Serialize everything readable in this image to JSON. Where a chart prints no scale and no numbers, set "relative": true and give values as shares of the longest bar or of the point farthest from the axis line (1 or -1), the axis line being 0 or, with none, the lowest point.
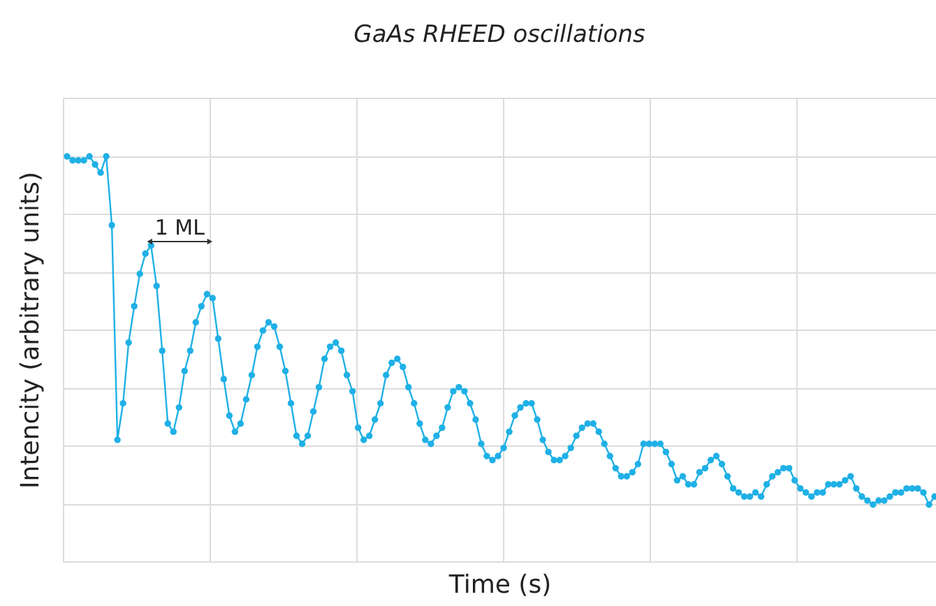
{
  "chart_data": {
    "type": "line",
    "title": "GaAs RHEED oscillations",
    "xlabel": "Time (s)",
    "ylabel": "Intencity (arbitrary units)",
    "relative": true,
    "grid": true,
    "tick_labels": false,
    "marker": "circle",
    "line_style": "solid",
    "annotations": [
      "1 ML"
    ],
    "categories": [
      null,
      null,
      null,
      null,
      null,
      null,
      null,
      null,
      null,
      null,
      null,
      null,
      null,
      null,
      null,
      null,
      null,
      null,
      null,
      null,
      null,
      null,
      null,
      null,
      null,
      null,
      null,
      null,
      null,
      null,
      null,
      null,
      null,
      null,
      null,
      null,
      null,
      null,
      null,
      null,
      null,
      null,
      null,
      null,
      null,
      null,
      null,
      null,
      null,
      null,
      null,
      null,
      null,
      null,
      null,
      null,
      null,
      null,
      null,
      null,
      null,
      null,
      null,
      null,
      null,
      null,
      null,
      null,
      null,
      null,
      null,
      null,
      null,
      null,
      null,
      null,
      null,
      null,
      null,
      null,
      null,
      null,
      null,
      null,
      null,
      null,
      null,
      null,
      null,
      null,
      null,
      null,
      null,
      null,
      null,
      null,
      null,
      null,
      null,
      null,
      null,
      null,
      null,
      null,
      null,
      null,
      null,
      null,
      null,
      null,
      null,
      null,
      null,
      null,
      null,
      null,
      null,
      null,
      null,
      null,
      null,
      null,
      null,
      null,
      null,
      null,
      null,
      null,
      null,
      null,
      null,
      null,
      null,
      null,
      null,
      null,
      null,
      null,
      null,
      null,
      null,
      null,
      null,
      null,
      null,
      null,
      null,
      null,
      null,
      null,
      null,
      null,
      null,
      null,
      null,
      null
    ],
    "series": [
      {
        "color": "#1fb0e6",
        "values": [
          1.0,
          0.99,
          0.99,
          0.99,
          1.0,
          0.98,
          0.96,
          1.0,
          0.83,
          0.3,
          0.39,
          0.54,
          0.63,
          0.71,
          0.76,
          0.78,
          0.68,
          0.52,
          0.34,
          0.32,
          0.38,
          0.47,
          0.52,
          0.59,
          0.63,
          0.66,
          0.65,
          0.55,
          0.45,
          0.36,
          0.32,
          0.34,
          0.4,
          0.46,
          0.53,
          0.57,
          0.59,
          0.58,
          0.53,
          0.47,
          0.39,
          0.31,
          0.29,
          0.31,
          0.37,
          0.43,
          0.5,
          0.53,
          0.54,
          0.52,
          0.46,
          0.42,
          0.33,
          0.3,
          0.31,
          0.35,
          0.39,
          0.46,
          0.49,
          0.5,
          0.48,
          0.43,
          0.39,
          0.34,
          0.3,
          0.29,
          0.31,
          0.33,
          0.38,
          0.42,
          0.43,
          0.42,
          0.39,
          0.35,
          0.29,
          0.26,
          0.25,
          0.26,
          0.28,
          0.32,
          0.36,
          0.38,
          0.39,
          0.39,
          0.35,
          0.3,
          0.27,
          0.25,
          0.25,
          0.26,
          0.28,
          0.31,
          0.33,
          0.34,
          0.34,
          0.32,
          0.29,
          0.26,
          0.23,
          0.21,
          0.21,
          0.22,
          0.24,
          0.29,
          0.29,
          0.29,
          0.29,
          0.27,
          0.24,
          0.2,
          0.21,
          0.19,
          0.19,
          0.22,
          0.23,
          0.25,
          0.26,
          0.24,
          0.21,
          0.18,
          0.17,
          0.16,
          0.16,
          0.17,
          0.16,
          0.19,
          0.21,
          0.22,
          0.23,
          0.23,
          0.2,
          0.18,
          0.17,
          0.16,
          0.17,
          0.17,
          0.19,
          0.19,
          0.19,
          0.2,
          0.21,
          0.18,
          0.16,
          0.15,
          0.14,
          0.15,
          0.15,
          0.16,
          0.17,
          0.17,
          0.18,
          0.18,
          0.18,
          0.17,
          0.14,
          0.16
        ]
      }
    ]
  }
}
